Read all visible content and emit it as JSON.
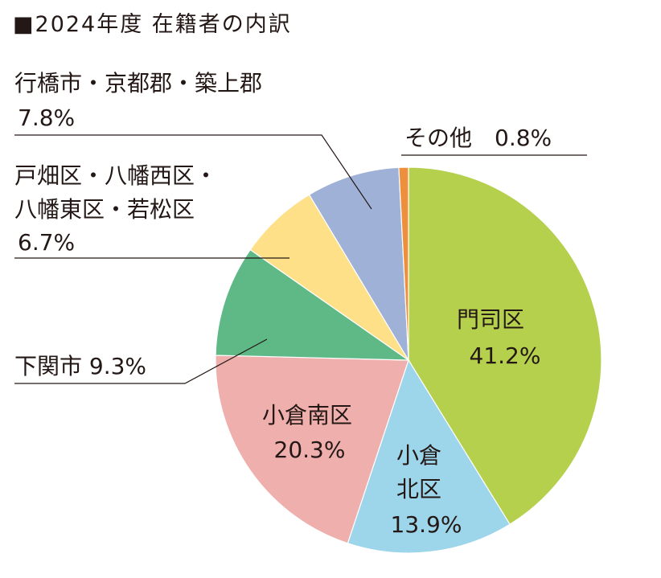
{
  "chart_data": {
    "type": "pie",
    "title": "■2024年度 在籍者の内訳",
    "start_angle_deg": 0,
    "direction": "clockwise",
    "slices": [
      {
        "label": "門司区",
        "value": 41.2,
        "value_label": "41.2%",
        "color": "#b5d04c"
      },
      {
        "label": "小倉北区",
        "value": 13.9,
        "value_label": "13.9%",
        "color": "#9dd5ea"
      },
      {
        "label": "小倉南区",
        "value": 20.3,
        "value_label": "20.3%",
        "color": "#efafad"
      },
      {
        "label": "下関市",
        "value": 9.3,
        "value_label": "9.3%",
        "color": "#5eb987"
      },
      {
        "label": "戸畑区・八幡西区・八幡東区・若松区",
        "value": 6.7,
        "value_label": "6.7%",
        "color": "#fde088"
      },
      {
        "label": "行橋市・京都郡・築上郡",
        "value": 7.8,
        "value_label": "7.8%",
        "color": "#9fb1d6"
      },
      {
        "label": "その他",
        "value": 0.8,
        "value_label": "0.8%",
        "color": "#ed8f3c"
      }
    ]
  },
  "labels": {
    "mojiku": [
      "門司区",
      "41.2%"
    ],
    "kokurakita": [
      "小倉",
      "北区",
      "13.9%"
    ],
    "kokuraminami": [
      "小倉南区",
      "20.3%"
    ],
    "shimonoseki": "下関市 9.3%",
    "tobata": [
      "戸畑区・八幡西区・",
      "八幡東区・若松区",
      "6.7%"
    ],
    "yukuhashi": [
      "行橋市・京都郡・築上郡",
      "7.8%"
    ],
    "sonota": "その他　0.8%"
  }
}
